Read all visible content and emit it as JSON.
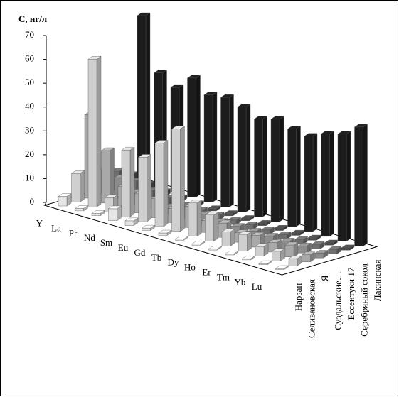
{
  "chart_data": {
    "type": "bar3d",
    "y_label": "C, нг/л",
    "categories": [
      "Y",
      "La",
      "Pr",
      "Nd",
      "Sm",
      "Eu",
      "Gd",
      "Tb",
      "Dy",
      "Ho",
      "Er",
      "Tm",
      "Yb",
      "Lu"
    ],
    "ylim": [
      0,
      70
    ],
    "yticks": [
      0,
      10,
      20,
      30,
      40,
      50,
      60,
      70
    ],
    "series": [
      {
        "name": "Нарзан",
        "color": "#e6e6e6",
        "values": [
          4,
          1,
          1,
          5,
          2,
          1,
          1,
          0.5,
          0.5,
          0.5,
          0.5,
          0.5,
          0.5,
          0.5
        ]
      },
      {
        "name": "Селивановская",
        "color": "#cfcfcf",
        "values": [
          12,
          62,
          6,
          28,
          27,
          35,
          43,
          14,
          11,
          6,
          7,
          4,
          4,
          3
        ]
      },
      {
        "name": "Я",
        "color": "#a9a9a9",
        "values": [
          35,
          22,
          9,
          8,
          8,
          6,
          9,
          5,
          6,
          4,
          5,
          4,
          5,
          3
        ]
      },
      {
        "name": "Суздальские…",
        "color": "#8c8c8c",
        "values": [
          10,
          9,
          5,
          4,
          3,
          3,
          4,
          3,
          3,
          3,
          3,
          3,
          3,
          2
        ]
      },
      {
        "name": "Ессентуки 17",
        "color": "#6e6e6e",
        "values": [
          8,
          6,
          4,
          3,
          2,
          2,
          2,
          2,
          2,
          2,
          2,
          2,
          2,
          2
        ]
      },
      {
        "name": "Серебряный сокол",
        "color": "#4a4a4a",
        "values": [
          5,
          3,
          2,
          1.5,
          1,
          1,
          1,
          1,
          1,
          1,
          1,
          1,
          1,
          1
        ]
      },
      {
        "name": "Лакинская",
        "color": "#1c1c1c",
        "values": [
          70,
          48,
          44,
          50,
          45,
          46,
          44,
          41,
          43,
          41,
          40,
          43,
          45,
          50
        ]
      }
    ]
  }
}
